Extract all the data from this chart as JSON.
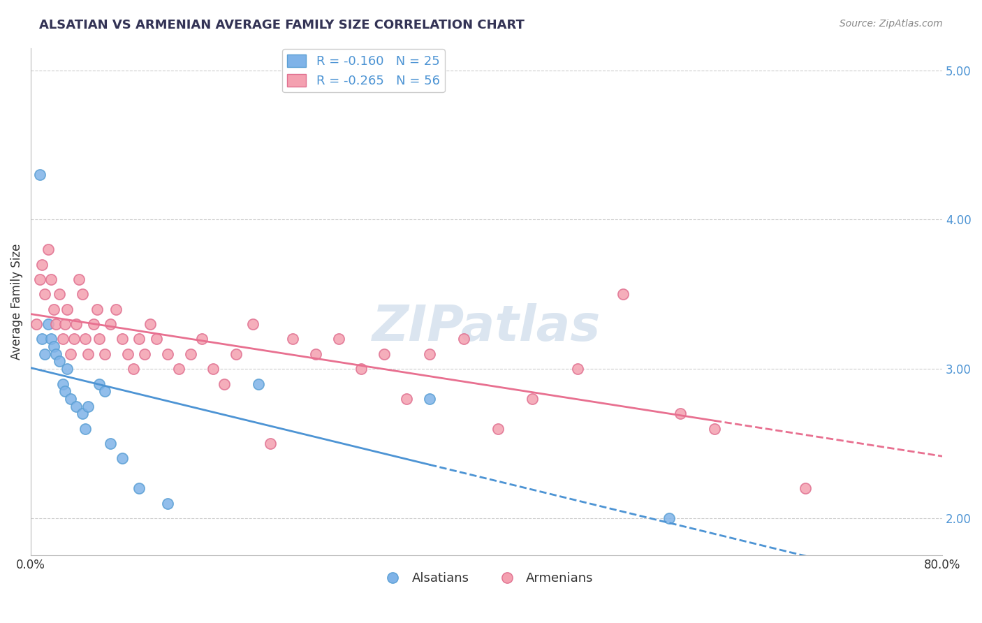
{
  "title": "ALSATIAN VS ARMENIAN AVERAGE FAMILY SIZE CORRELATION CHART",
  "source_text": "Source: ZipAtlas.com",
  "ylabel": "Average Family Size",
  "xlim": [
    0.0,
    0.8
  ],
  "ylim": [
    1.75,
    5.15
  ],
  "yticks_right": [
    2.0,
    3.0,
    4.0,
    5.0
  ],
  "xticks": [
    0.0,
    0.1,
    0.2,
    0.3,
    0.4,
    0.5,
    0.6,
    0.7,
    0.8
  ],
  "grid_color": "#cccccc",
  "background_color": "#ffffff",
  "alsatian_color": "#7fb3e8",
  "armenian_color": "#f4a0b0",
  "alsatian_edge": "#5a9fd4",
  "armenian_edge": "#e07090",
  "trend_blue": "#4d94d4",
  "trend_pink": "#e87090",
  "watermark_color": "#c8d8e8",
  "R_alsatian": -0.16,
  "N_alsatian": 25,
  "R_armenian": -0.265,
  "N_armenian": 56,
  "alsatian_x": [
    0.008,
    0.01,
    0.012,
    0.015,
    0.018,
    0.02,
    0.022,
    0.025,
    0.028,
    0.03,
    0.032,
    0.035,
    0.04,
    0.045,
    0.048,
    0.05,
    0.06,
    0.065,
    0.07,
    0.08,
    0.095,
    0.12,
    0.2,
    0.35,
    0.56
  ],
  "alsatian_y": [
    4.3,
    3.2,
    3.1,
    3.3,
    3.2,
    3.15,
    3.1,
    3.05,
    2.9,
    2.85,
    3.0,
    2.8,
    2.75,
    2.7,
    2.6,
    2.75,
    2.9,
    2.85,
    2.5,
    2.4,
    2.2,
    2.1,
    2.9,
    2.8,
    2.0
  ],
  "armenian_x": [
    0.005,
    0.008,
    0.01,
    0.012,
    0.015,
    0.018,
    0.02,
    0.022,
    0.025,
    0.028,
    0.03,
    0.032,
    0.035,
    0.038,
    0.04,
    0.042,
    0.045,
    0.048,
    0.05,
    0.055,
    0.058,
    0.06,
    0.065,
    0.07,
    0.075,
    0.08,
    0.085,
    0.09,
    0.095,
    0.1,
    0.105,
    0.11,
    0.12,
    0.13,
    0.14,
    0.15,
    0.16,
    0.17,
    0.18,
    0.195,
    0.21,
    0.23,
    0.25,
    0.27,
    0.29,
    0.31,
    0.33,
    0.35,
    0.38,
    0.41,
    0.44,
    0.48,
    0.52,
    0.57,
    0.6,
    0.68
  ],
  "armenian_y": [
    3.3,
    3.6,
    3.7,
    3.5,
    3.8,
    3.6,
    3.4,
    3.3,
    3.5,
    3.2,
    3.3,
    3.4,
    3.1,
    3.2,
    3.3,
    3.6,
    3.5,
    3.2,
    3.1,
    3.3,
    3.4,
    3.2,
    3.1,
    3.3,
    3.4,
    3.2,
    3.1,
    3.0,
    3.2,
    3.1,
    3.3,
    3.2,
    3.1,
    3.0,
    3.1,
    3.2,
    3.0,
    2.9,
    3.1,
    3.3,
    2.5,
    3.2,
    3.1,
    3.2,
    3.0,
    3.1,
    2.8,
    3.1,
    3.2,
    2.6,
    2.8,
    3.0,
    3.5,
    2.7,
    2.6,
    2.2
  ]
}
